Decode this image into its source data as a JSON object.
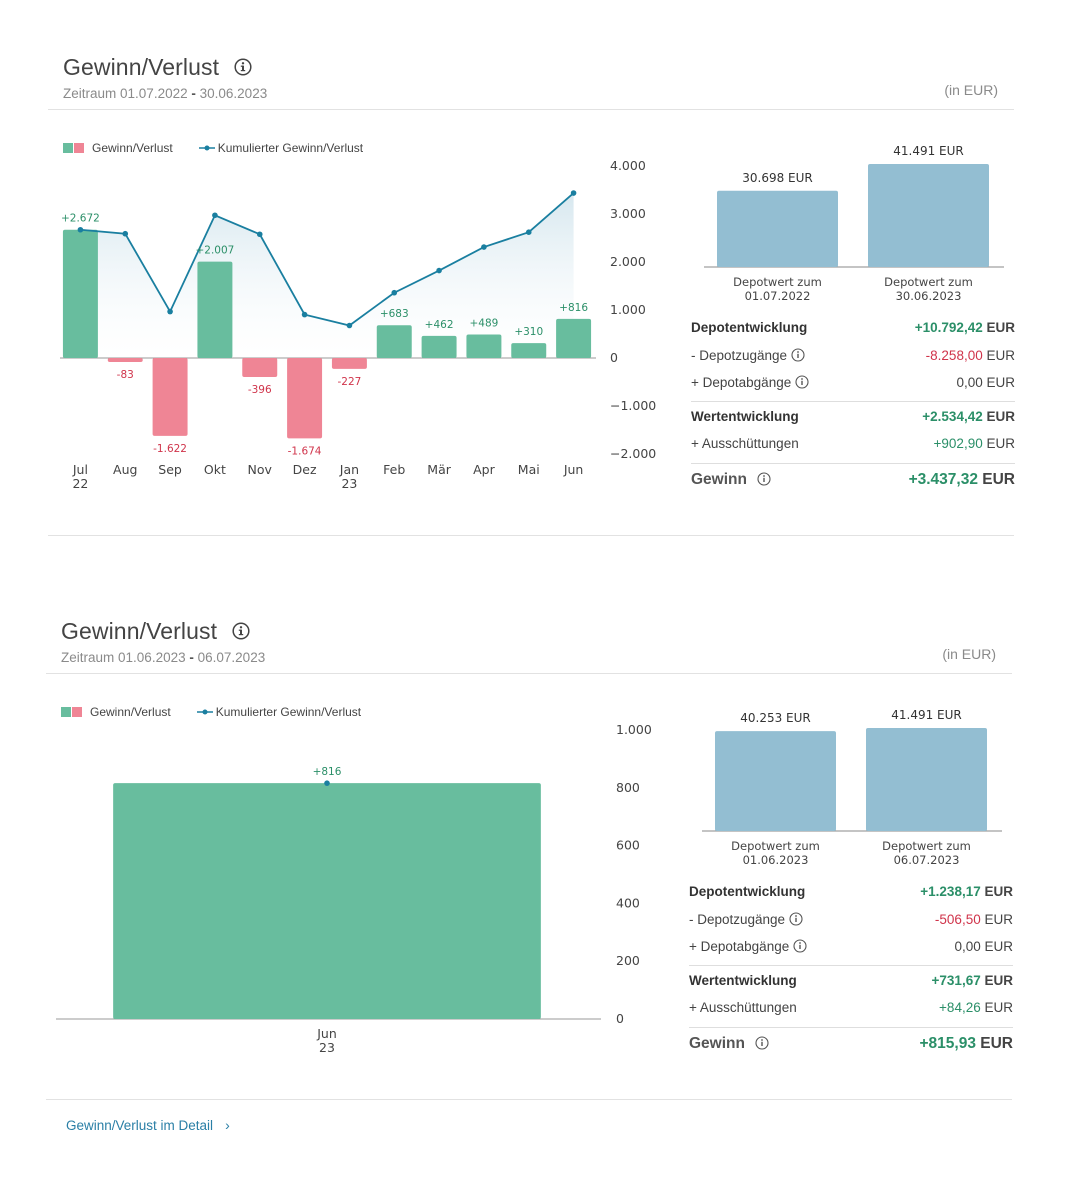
{
  "colors": {
    "gain": "#68bd9e",
    "loss": "#ef8595",
    "line": "#1a7fa0",
    "depot_bar": "#93bed2",
    "pos_text": "#2b8f68",
    "neg_text": "#d0344b"
  },
  "panels": [
    {
      "title": "Gewinn/Verlust",
      "period_label": "Zeitraum",
      "period_start": "01.07.2022",
      "period_dash": "-",
      "period_end": "30.06.2023",
      "unit": "(in EUR)",
      "legend": {
        "bars": "Gewinn/Verlust",
        "line": "Kumulierter Gewinn/Verlust"
      },
      "depot": {
        "bars": [
          {
            "value_label": "30.698 EUR",
            "value": 30698,
            "caption_1": "Depotwert zum",
            "caption_2": "01.07.2022"
          },
          {
            "value_label": "41.491 EUR",
            "value": 41491,
            "caption_1": "Depotwert zum",
            "caption_2": "30.06.2023"
          }
        ]
      },
      "summary": {
        "depotentwicklung": {
          "label": "Depotentwicklung",
          "value": "+10.792,42",
          "currency": "EUR"
        },
        "zugaenge": {
          "label": "- Depotzugänge",
          "value": "-8.258,00",
          "currency": "EUR"
        },
        "abgaenge": {
          "label": "+ Depotabgänge",
          "value": "0,00",
          "currency": "EUR"
        },
        "wertentwicklung": {
          "label": "Wertentwicklung",
          "value": "+2.534,42",
          "currency": "EUR"
        },
        "ausschuettungen": {
          "label": "+ Ausschüttungen",
          "value": "+902,90",
          "currency": "EUR"
        },
        "gewinn": {
          "label": "Gewinn",
          "value": "+3.437,32",
          "currency": "EUR"
        }
      }
    },
    {
      "title": "Gewinn/Verlust",
      "period_label": "Zeitraum",
      "period_start": "01.06.2023",
      "period_dash": "-",
      "period_end": "06.07.2023",
      "unit": "(in EUR)",
      "legend": {
        "bars": "Gewinn/Verlust",
        "line": "Kumulierter Gewinn/Verlust"
      },
      "depot": {
        "bars": [
          {
            "value_label": "40.253 EUR",
            "value": 40253,
            "caption_1": "Depotwert zum",
            "caption_2": "01.06.2023"
          },
          {
            "value_label": "41.491 EUR",
            "value": 41491,
            "caption_1": "Depotwert zum",
            "caption_2": "06.07.2023"
          }
        ]
      },
      "summary": {
        "depotentwicklung": {
          "label": "Depotentwicklung",
          "value": "+1.238,17",
          "currency": "EUR"
        },
        "zugaenge": {
          "label": "- Depotzugänge",
          "value": "-506,50",
          "currency": "EUR"
        },
        "abgaenge": {
          "label": "+ Depotabgänge",
          "value": "0,00",
          "currency": "EUR"
        },
        "wertentwicklung": {
          "label": "Wertentwicklung",
          "value": "+731,67",
          "currency": "EUR"
        },
        "ausschuettungen": {
          "label": "+ Ausschüttungen",
          "value": "+84,26",
          "currency": "EUR"
        },
        "gewinn": {
          "label": "Gewinn",
          "value": "+815,93",
          "currency": "EUR"
        }
      }
    }
  ],
  "chart_data": [
    {
      "type": "bar",
      "title": "Gewinn/Verlust",
      "categories": [
        "Jul",
        "Aug",
        "Sep",
        "Okt",
        "Nov",
        "Dez",
        "Jan",
        "Feb",
        "Mär",
        "Apr",
        "Mai",
        "Jun"
      ],
      "year_labels": [
        "22",
        "",
        "",
        "",
        "",
        "",
        "23",
        "",
        "",
        "",
        "",
        ""
      ],
      "series": [
        {
          "name": "Gewinn/Verlust",
          "type": "bar",
          "values": [
            2672,
            -83,
            -1622,
            2007,
            -396,
            -1674,
            -227,
            683,
            462,
            489,
            310,
            816
          ]
        },
        {
          "name": "Kumulierter Gewinn/Verlust",
          "type": "line",
          "values": [
            2672,
            2589,
            967,
            2974,
            2578,
            904,
            677,
            1360,
            1822,
            2311,
            2621,
            3437
          ]
        }
      ],
      "value_labels": [
        "+2.672",
        "-83",
        "-1.622",
        "+2.007",
        "-396",
        "-1.674",
        "-227",
        "+683",
        "+462",
        "+489",
        "+310",
        "+816"
      ],
      "yticks": [
        4000,
        3000,
        2000,
        1000,
        0,
        -1000,
        -2000
      ],
      "ytick_labels": [
        "4.000",
        "3.000",
        "2.000",
        "1.000",
        "0",
        "−1.000",
        "−2.000"
      ],
      "ylim": [
        -2000,
        4000
      ],
      "legend": "top-left",
      "grid": false
    },
    {
      "type": "bar",
      "title": "Gewinn/Verlust",
      "categories": [
        "Jun"
      ],
      "year_labels": [
        "23"
      ],
      "series": [
        {
          "name": "Gewinn/Verlust",
          "type": "bar",
          "values": [
            816
          ]
        },
        {
          "name": "Kumulierter Gewinn/Verlust",
          "type": "line",
          "values": [
            816
          ]
        }
      ],
      "value_labels": [
        "+816"
      ],
      "yticks": [
        1000,
        800,
        600,
        400,
        200,
        0
      ],
      "ytick_labels": [
        "1.000",
        "800",
        "600",
        "400",
        "200",
        "0"
      ],
      "ylim": [
        0,
        1000
      ],
      "legend": "top-left",
      "grid": false
    }
  ],
  "footer": {
    "link_label": "Gewinn/Verlust im Detail"
  }
}
